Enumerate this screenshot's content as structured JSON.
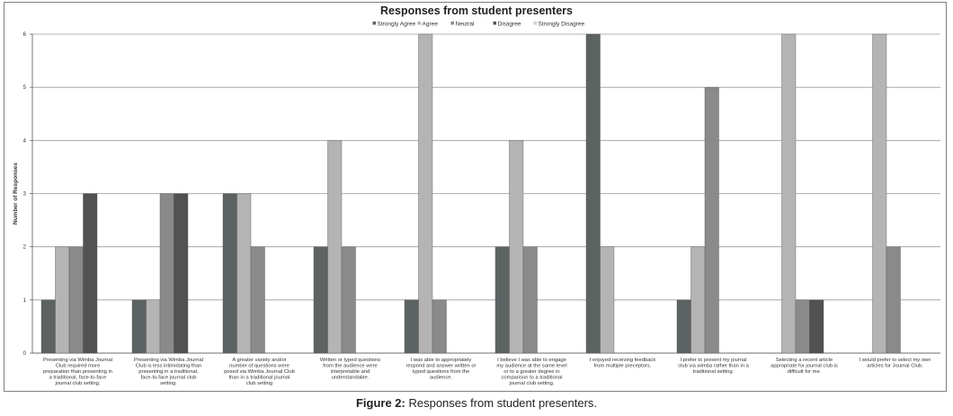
{
  "chart_data": {
    "type": "bar",
    "title": "Responses from student presenters",
    "xlabel": "",
    "ylabel": "Number of Responses",
    "ylim": [
      0,
      6
    ],
    "yticks": [
      "0",
      "1",
      "2",
      "3",
      "4",
      "5",
      "6"
    ],
    "grid": true,
    "legend_position": "top",
    "categories": [
      [
        "Presenting via Wimba Journal",
        "Club  required more",
        "preparation than presenting in",
        "a traditional, face-to-face",
        "journal club setting."
      ],
      [
        "Presenting via Wimba Journal",
        "Club  is less intimidating than",
        "presenting in a traditional,",
        "face-to-face journal club",
        "setting."
      ],
      [
        "A greater variety and/or",
        "number of questions were",
        "posed via Wimba Journal Club",
        "than in a traditional journal",
        "club setting"
      ],
      [
        "Written or typed questions",
        "from the audience were",
        "interpretable and",
        "understandable."
      ],
      [
        "I was able to appropriately",
        "respond and answer written or",
        "typed questions from the",
        "audience."
      ],
      [
        "I believe I was able to engage",
        "my audience at the same level",
        "or to a greater degree in",
        "comparison to a traditional",
        "journal club setting."
      ],
      [
        "I enjoyed receiving feedback",
        "from multiple preceptors."
      ],
      [
        "I prefer to present my journal",
        "club via wimba rather than in a",
        "traditional setting."
      ],
      [
        "Selecting a recent article",
        "appropriate for journal club is",
        "difficult for me."
      ],
      [
        "I would prefer to select my own",
        "articles for Journal Club."
      ]
    ],
    "series": [
      {
        "name": "Strongly Agree",
        "color": "#5d6362",
        "values": [
          1,
          1,
          3,
          2,
          1,
          2,
          6,
          1,
          0,
          0
        ]
      },
      {
        "name": "Agree",
        "color": "#b4b4b4",
        "values": [
          2,
          1,
          3,
          4,
          6,
          4,
          2,
          2,
          6,
          6
        ]
      },
      {
        "name": "Neutral",
        "color": "#8a8a8a",
        "values": [
          2,
          3,
          2,
          2,
          1,
          2,
          0,
          5,
          1,
          2
        ]
      },
      {
        "name": "Disagree",
        "color": "#525252",
        "values": [
          3,
          3,
          0,
          0,
          0,
          0,
          0,
          0,
          1,
          0
        ]
      },
      {
        "name": "Strongly Disagree",
        "color": "#cfcfcf",
        "values": [
          0,
          0,
          0,
          0,
          0,
          0,
          0,
          0,
          0,
          0
        ]
      }
    ]
  },
  "caption": {
    "label": "Figure 2:",
    "text": " Responses from student presenters."
  }
}
